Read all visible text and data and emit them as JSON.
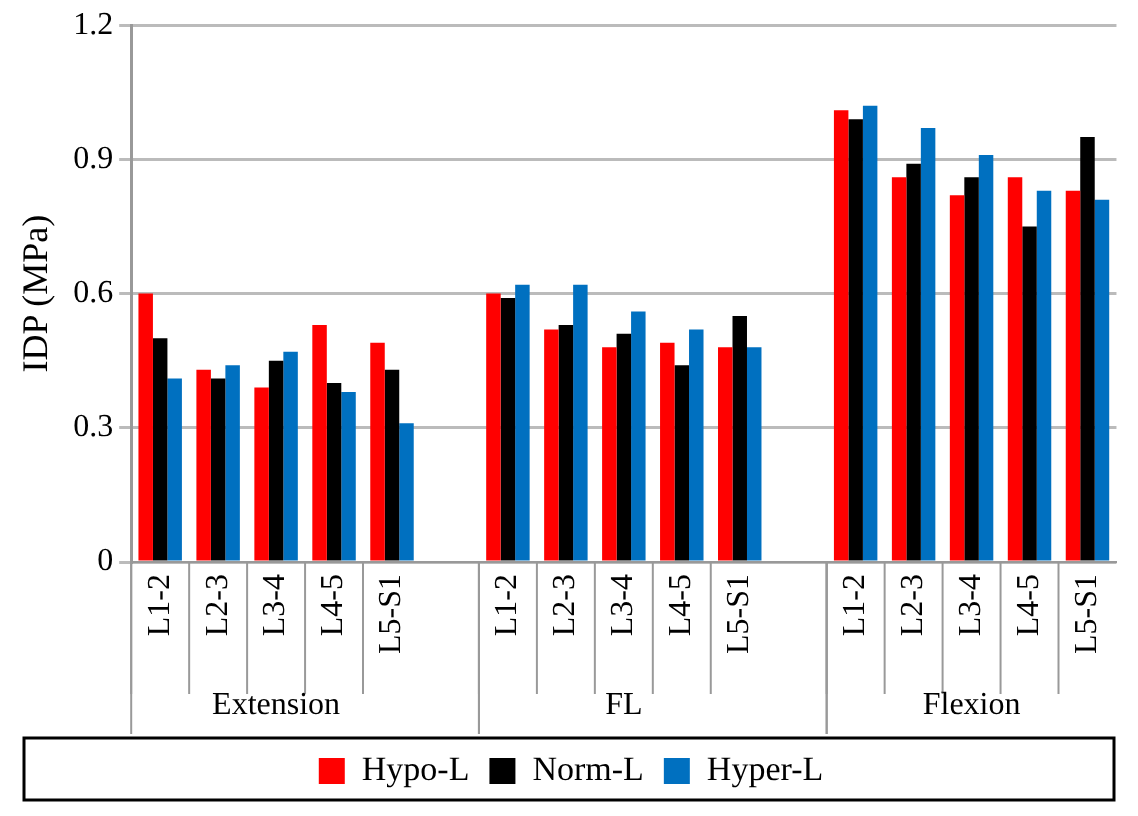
{
  "chart_data": {
    "type": "bar",
    "ylabel": "IDP (MPa)",
    "categories": [
      "L1-2",
      "L2-3",
      "L3-4",
      "L4-5",
      "L5-S1",
      null,
      "L1-2",
      "L2-3",
      "L3-4",
      "L4-5",
      "L5-S1",
      null,
      "L1-2",
      "L2-3",
      "L3-4",
      "L4-5",
      "L5-S1"
    ],
    "annotations": [
      "Extension",
      "FL",
      "Flexion"
    ],
    "series": [
      {
        "name": "Hypo-L",
        "color": "#ff0000",
        "values": [
          0.6,
          0.43,
          0.39,
          0.53,
          0.49,
          null,
          0.6,
          0.52,
          0.48,
          0.49,
          0.48,
          null,
          1.01,
          0.86,
          0.82,
          0.86,
          0.83
        ]
      },
      {
        "name": "Norm-L",
        "color": "#000000",
        "values": [
          0.5,
          0.41,
          0.45,
          0.4,
          0.43,
          null,
          0.59,
          0.53,
          0.51,
          0.44,
          0.55,
          null,
          0.99,
          0.89,
          0.86,
          0.75,
          0.95
        ]
      },
      {
        "name": "Hyper-L",
        "color": "#0070c0",
        "values": [
          0.41,
          0.44,
          0.47,
          0.38,
          0.31,
          null,
          0.62,
          0.62,
          0.56,
          0.52,
          0.48,
          null,
          1.02,
          0.97,
          0.91,
          0.83,
          0.81
        ]
      }
    ],
    "ylim": [
      0,
      1.2
    ],
    "yticks": [
      0,
      0.3,
      0.6,
      0.9,
      1.2
    ],
    "grid": "y",
    "legend": "bottom"
  }
}
